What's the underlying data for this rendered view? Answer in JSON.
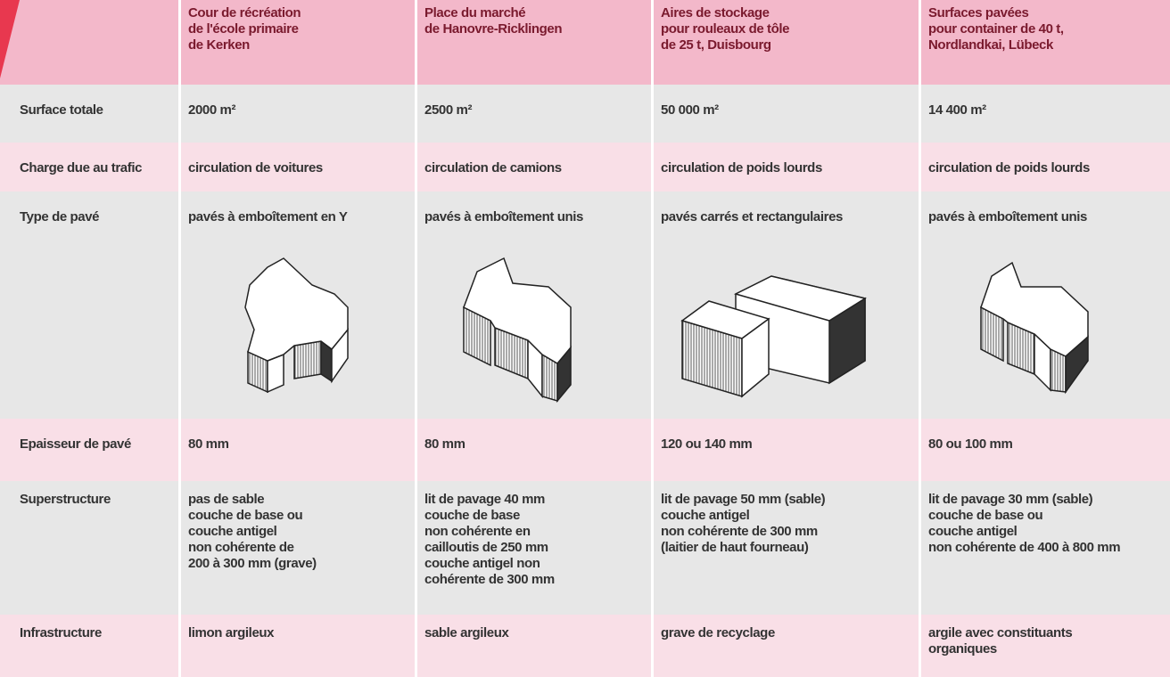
{
  "table": {
    "header": [
      "Cour de récréation\nde l'école primaire\nde Kerken",
      "Place du marché\nde Hanovre-Ricklingen",
      "Aires de stockage\npour rouleaux de tôle\nde 25 t, Duisbourg",
      "Surfaces pavées\npour container de 40 t,\nNordlandkai, Lübeck"
    ],
    "rows": [
      {
        "label": "Surface totale",
        "cells": [
          "2000 m²",
          "2500 m²",
          "50 000 m²",
          "14 400 m²"
        ]
      },
      {
        "label": "Charge due au trafic",
        "cells": [
          "circulation de voitures",
          "circulation de camions",
          "circulation de poids lourds",
          "circulation de poids lourds"
        ]
      },
      {
        "label": "Type de pavé",
        "cells": [
          "pavés à emboîtement en Y",
          "pavés à emboîtement unis",
          "pavés carrés et rectangulaires",
          "pavés à emboîtement unis"
        ]
      },
      {
        "label": "Epaisseur de pavé",
        "cells": [
          "80 mm",
          "80 mm",
          "120 ou 140 mm",
          "80 ou 100 mm"
        ]
      },
      {
        "label": "Superstructure",
        "cells": [
          "pas de sable\ncouche de base ou\ncouche antigel\nnon cohérente de\n200 à 300 mm (grave)",
          "lit de pavage 40 mm\ncouche de base\nnon cohérente en\ncailloutis de 250 mm\ncouche antigel non\ncohérente de 300 mm",
          "lit de pavage 50 mm (sable)\ncouche antigel\nnon cohérente de 300 mm\n(laitier de haut fourneau)",
          "lit de pavage 30 mm (sable)\ncouche de base ou\ncouche antigel\nnon cohérente de 400 à 800 mm"
        ]
      },
      {
        "label": "Infrastructure",
        "cells": [
          "limon argileux",
          "sable argileux",
          "grave de recyclage",
          "argile avec constituants\norganiques"
        ]
      }
    ]
  }
}
